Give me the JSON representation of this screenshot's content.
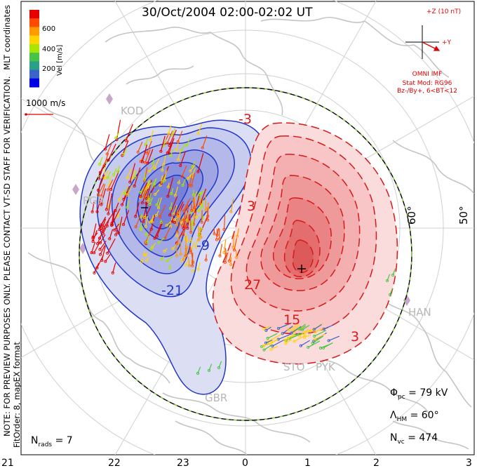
{
  "title": "30/Oct/2004 02:00-02:02 UT",
  "side_text": {
    "mlt_coords": "MLT coordinates",
    "warning": "NOTE: FOR PREVIEW PURPOSES ONLY. PLEASE CONTACT VT-SD STAFF FOR VERIFICATION.",
    "fit_order": "FitOrder: 8, mapEX format"
  },
  "colorbar": {
    "label": "Vel [m/s]",
    "ticks": [
      "600",
      "400",
      "200"
    ],
    "colors": [
      "#e60000",
      "#ff4a00",
      "#ff9a00",
      "#ffd400",
      "#a6e600",
      "#47c447",
      "#2aa088",
      "#3b64c8",
      "#0000e6"
    ]
  },
  "scale_vector": {
    "label": "1000 m/s",
    "color": "#e00000"
  },
  "imf": {
    "z_label": "+Z (10 nT)",
    "y_label": "+Y",
    "source": "OMNI IMF",
    "stat_mod": "Stat Mod: RG96",
    "condition": "Bz-/By+, 6<BT<12",
    "color": "#e00000"
  },
  "stations": [
    "KOD",
    "PGR",
    "GBR",
    "STO",
    "PYK",
    "HAN"
  ],
  "latitude_labels": [
    "60°",
    "50°"
  ],
  "mlt_labels": [
    "21",
    "22",
    "23",
    "0",
    "1",
    "2",
    "3"
  ],
  "contour_labels": [
    "-3",
    "-21",
    "-9",
    "3",
    "27",
    "15",
    "3"
  ],
  "stats": {
    "phi_label": "Φ",
    "phi_sub": "pc",
    "phi_value": "= 79 kV",
    "lambda_label": "Λ",
    "lambda_sub": "HM",
    "lambda_value": "= 60°",
    "nvc_label": "N",
    "nvc_sub": "vc",
    "nvc_value": "= 474",
    "nrads_label": "N",
    "nrads_sub": "rads",
    "nrads_value": "= 7"
  },
  "colors": {
    "negative_cell": "#2236c8",
    "positive_cell": "#d61a1a",
    "coastline": "#c4c4c4",
    "grid": "#cdcdcd",
    "hm_boundary_green": "#8ed641"
  }
}
